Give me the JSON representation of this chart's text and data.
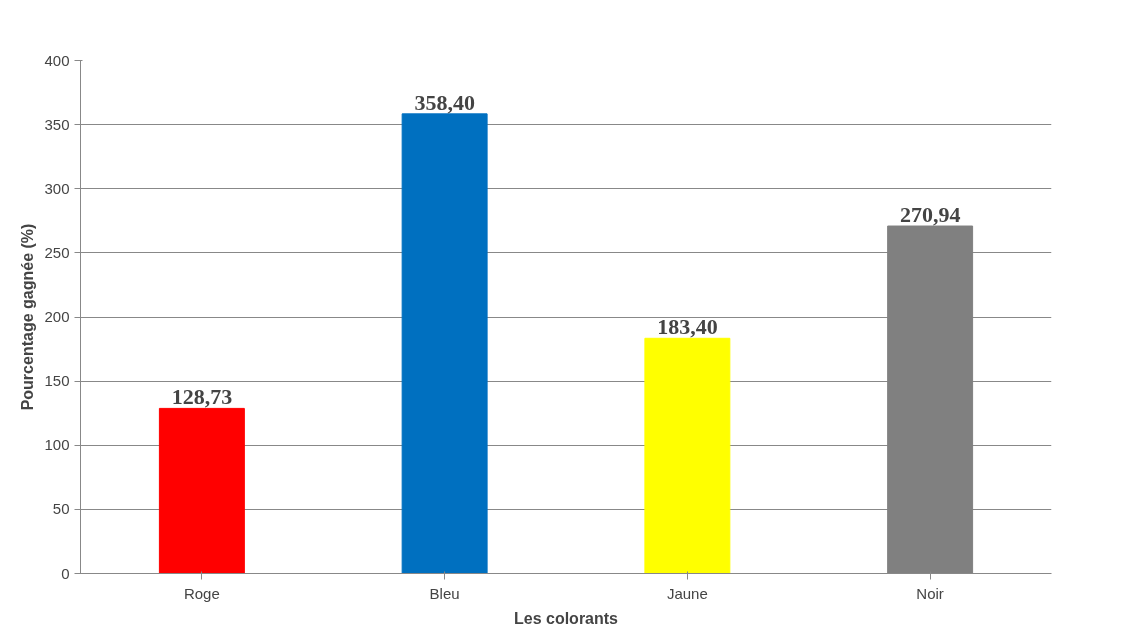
{
  "chart_data": {
    "type": "bar",
    "xlabel": "Les colorants",
    "ylabel": "Pourcentage gagnée (%)",
    "categories": [
      "Roge",
      "Bleu",
      "Jaune",
      "Noir"
    ],
    "values": [
      128.73,
      358.4,
      183.4,
      270.94
    ],
    "colors": [
      "#ff0000",
      "#0070c0",
      "#ffff00",
      "#808080"
    ],
    "value_labels": [
      "128,73",
      "358,40",
      "183,40",
      "270,94"
    ],
    "ylim": [
      0,
      400
    ],
    "yticks": [
      0,
      50,
      100,
      150,
      200,
      250,
      300,
      350,
      400
    ],
    "grid": "y"
  }
}
